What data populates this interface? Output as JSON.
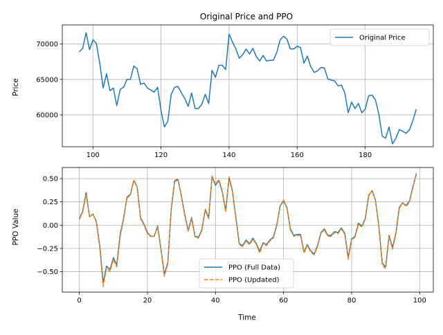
{
  "chart_data": [
    {
      "type": "line",
      "title": "Original Price and PPO",
      "xlabel": "",
      "ylabel": "Price",
      "xlim": [
        91,
        200
      ],
      "ylim": [
        55500,
        72700
      ],
      "xticks": [
        100,
        120,
        140,
        160,
        180
      ],
      "yticks": [
        60000,
        65000,
        70000
      ],
      "grid": true,
      "legend_position": "top-right",
      "series": [
        {
          "name": "Original Price",
          "color": "#1f77b4",
          "x": [
            96,
            97,
            98,
            99,
            100,
            101,
            102,
            103,
            104,
            105,
            106,
            107,
            108,
            109,
            110,
            111,
            112,
            113,
            114,
            115,
            116,
            117,
            118,
            119,
            120,
            121,
            122,
            123,
            124,
            125,
            126,
            127,
            128,
            129,
            130,
            131,
            132,
            133,
            134,
            135,
            136,
            137,
            138,
            139,
            140,
            141,
            142,
            143,
            144,
            145,
            146,
            147,
            148,
            149,
            150,
            151,
            152,
            153,
            154,
            155,
            156,
            157,
            158,
            159,
            160,
            161,
            162,
            163,
            164,
            165,
            166,
            167,
            168,
            169,
            170,
            171,
            172,
            173,
            174,
            175,
            176,
            177,
            178,
            179,
            180,
            181,
            182,
            183,
            184,
            185,
            186,
            187,
            188,
            189,
            190,
            191,
            192,
            193,
            194,
            195
          ],
          "values": [
            68900,
            69400,
            71600,
            69200,
            70600,
            70100,
            67300,
            63800,
            65800,
            63400,
            63800,
            61300,
            63600,
            63900,
            65000,
            65000,
            66900,
            66500,
            64300,
            64500,
            63800,
            63500,
            63200,
            63900,
            60600,
            58300,
            59100,
            62900,
            63900,
            64000,
            63100,
            62300,
            61200,
            63100,
            60900,
            60900,
            61500,
            62900,
            61600,
            66300,
            65300,
            67000,
            67000,
            66400,
            71400,
            70300,
            69300,
            68000,
            68500,
            69300,
            68600,
            69400,
            68200,
            67600,
            68400,
            67600,
            67700,
            67700,
            68800,
            70600,
            71100,
            70700,
            69300,
            69300,
            69700,
            69500,
            67300,
            68300,
            66800,
            66000,
            66200,
            66700,
            66600,
            65100,
            64900,
            64800,
            64100,
            64200,
            63100,
            60300,
            61800,
            60900,
            61600,
            60300,
            60800,
            62700,
            62800,
            62100,
            60100,
            57000,
            56700,
            58300,
            55900,
            56700,
            57900,
            57700,
            57400,
            57900,
            59200,
            60800
          ]
        }
      ]
    },
    {
      "type": "line",
      "title": "",
      "xlabel": "Time",
      "ylabel": "PPO Value",
      "xlim": [
        -5,
        104
      ],
      "ylim": [
        -0.72,
        0.62
      ],
      "xticks": [
        0,
        20,
        40,
        60,
        80,
        100
      ],
      "yticks": [
        -0.5,
        -0.25,
        0.0,
        0.25,
        0.5
      ],
      "ytick_labels": [
        "−0.50",
        "−0.25",
        "0.00",
        "0.25",
        "0.50"
      ],
      "grid": true,
      "legend_position": "bottom-center",
      "series": [
        {
          "name": "PPO (Full Data)",
          "color": "#1f77b4",
          "style": "solid",
          "x": [
            0,
            1,
            2,
            3,
            4,
            5,
            6,
            7,
            8,
            9,
            10,
            11,
            12,
            13,
            14,
            15,
            16,
            17,
            18,
            19,
            20,
            21,
            22,
            23,
            24,
            25,
            26,
            27,
            28,
            29,
            30,
            31,
            32,
            33,
            34,
            35,
            36,
            37,
            38,
            39,
            40,
            41,
            42,
            43,
            44,
            45,
            46,
            47,
            48,
            49,
            50,
            51,
            52,
            53,
            54,
            55,
            56,
            57,
            58,
            59,
            60,
            61,
            62,
            63,
            64,
            65,
            66,
            67,
            68,
            69,
            70,
            71,
            72,
            73,
            74,
            75,
            76,
            77,
            78,
            79,
            80,
            81,
            82,
            83,
            84,
            85,
            86,
            87,
            88,
            89,
            90,
            91,
            92,
            93,
            94,
            95,
            96,
            97,
            98,
            99
          ],
          "values": [
            0.07,
            0.15,
            0.35,
            0.09,
            0.12,
            0.04,
            -0.22,
            -0.62,
            -0.44,
            -0.48,
            -0.35,
            -0.43,
            -0.1,
            0.07,
            0.3,
            0.33,
            0.48,
            0.41,
            0.08,
            0.01,
            -0.08,
            -0.12,
            -0.12,
            -0.01,
            -0.26,
            -0.53,
            -0.4,
            0.17,
            0.47,
            0.49,
            0.31,
            0.11,
            -0.06,
            0.08,
            -0.12,
            -0.13,
            -0.05,
            0.17,
            0.08,
            0.52,
            0.43,
            0.48,
            0.36,
            0.15,
            0.51,
            0.36,
            0.08,
            -0.2,
            -0.22,
            -0.16,
            -0.2,
            -0.14,
            -0.2,
            -0.28,
            -0.19,
            -0.21,
            -0.16,
            -0.13,
            0.0,
            0.21,
            0.26,
            0.19,
            -0.04,
            -0.11,
            -0.1,
            -0.1,
            -0.29,
            -0.21,
            -0.28,
            -0.31,
            -0.22,
            -0.08,
            -0.04,
            -0.11,
            -0.11,
            -0.07,
            -0.08,
            -0.03,
            -0.09,
            -0.35,
            -0.15,
            -0.12,
            0.02,
            -0.01,
            0.07,
            0.32,
            0.37,
            0.27,
            -0.01,
            -0.41,
            -0.45,
            -0.11,
            -0.24,
            -0.09,
            0.19,
            0.24,
            0.21,
            0.26,
            0.41,
            0.55
          ]
        },
        {
          "name": "PPO (Updated)",
          "color": "#ff7f0e",
          "style": "dashed",
          "x": [
            0,
            1,
            2,
            3,
            4,
            5,
            6,
            7,
            8,
            9,
            10,
            11,
            12,
            13,
            14,
            15,
            16,
            17,
            18,
            19,
            20,
            21,
            22,
            23,
            24,
            25,
            26,
            27,
            28,
            29,
            30,
            31,
            32,
            33,
            34,
            35,
            36,
            37,
            38,
            39,
            40,
            41,
            42,
            43,
            44,
            45,
            46,
            47,
            48,
            49,
            50,
            51,
            52,
            53,
            54,
            55,
            56,
            57,
            58,
            59,
            60,
            61,
            62,
            63,
            64,
            65,
            66,
            67,
            68,
            69,
            70,
            71,
            72,
            73,
            74,
            75,
            76,
            77,
            78,
            79,
            80,
            81,
            82,
            83,
            84,
            85,
            86,
            87,
            88,
            89,
            90,
            91,
            92,
            93,
            94,
            95,
            96,
            97,
            98,
            99
          ],
          "values": [
            0.06,
            0.14,
            0.33,
            0.09,
            0.12,
            0.03,
            -0.24,
            -0.66,
            -0.46,
            -0.5,
            -0.37,
            -0.45,
            -0.12,
            0.06,
            0.29,
            0.32,
            0.49,
            0.41,
            0.07,
            0.0,
            -0.09,
            -0.12,
            -0.12,
            -0.02,
            -0.27,
            -0.55,
            -0.42,
            0.16,
            0.48,
            0.5,
            0.31,
            0.1,
            -0.07,
            0.07,
            -0.13,
            -0.14,
            -0.06,
            0.16,
            0.07,
            0.53,
            0.44,
            0.49,
            0.37,
            0.14,
            0.52,
            0.37,
            0.07,
            -0.21,
            -0.23,
            -0.17,
            -0.21,
            -0.15,
            -0.21,
            -0.3,
            -0.2,
            -0.22,
            -0.17,
            -0.14,
            -0.01,
            0.2,
            0.27,
            0.19,
            -0.05,
            -0.12,
            -0.11,
            -0.11,
            -0.3,
            -0.22,
            -0.29,
            -0.32,
            -0.23,
            -0.09,
            -0.05,
            -0.12,
            -0.12,
            -0.08,
            -0.09,
            -0.04,
            -0.1,
            -0.37,
            -0.16,
            -0.13,
            0.01,
            -0.02,
            0.06,
            0.31,
            0.38,
            0.27,
            -0.02,
            -0.43,
            -0.47,
            -0.12,
            -0.26,
            -0.1,
            0.18,
            0.24,
            0.2,
            0.25,
            0.4,
            0.56
          ]
        }
      ]
    }
  ]
}
